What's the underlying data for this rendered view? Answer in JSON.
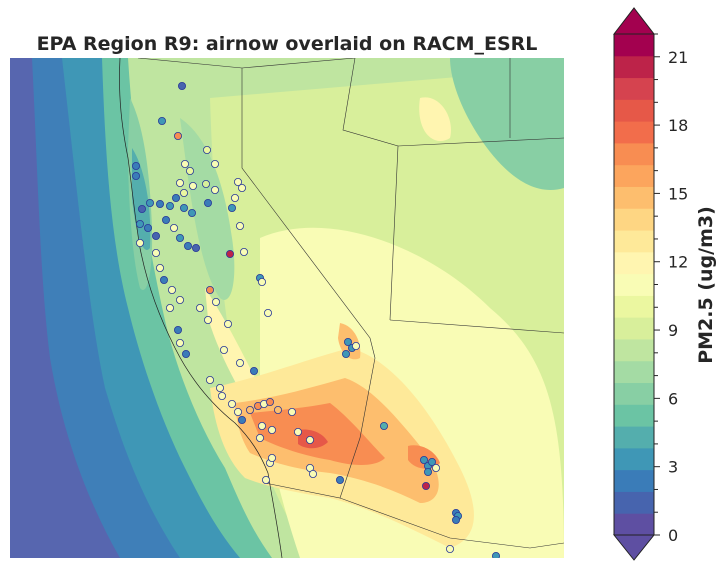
{
  "title": "EPA Region R9: airnow overlaid on RACM_ESRL",
  "colorbar": {
    "label": "PM2.5 (ug/m3)",
    "min": 0,
    "max": 22,
    "ticks": [
      0,
      3,
      6,
      9,
      12,
      15,
      18,
      21
    ],
    "extend": "both",
    "colors": [
      "#5e4fa2",
      "#4764ae",
      "#3a7cb8",
      "#3f97b6",
      "#54aead",
      "#6bc4a4",
      "#88cfa4",
      "#a4dba4",
      "#bfe5a0",
      "#d8ef9b",
      "#ebf7a0",
      "#f9fcb5",
      "#fff5b0",
      "#fee999",
      "#fed683",
      "#fdbe6e",
      "#fca55d",
      "#f88d52",
      "#f26d4b",
      "#e65848",
      "#d5434f",
      "#bd2349",
      "#a3014f"
    ],
    "cmap": "Spectral_r"
  },
  "observations_legend": "circles = airnow monitor observations, filled by the same color scale"
}
